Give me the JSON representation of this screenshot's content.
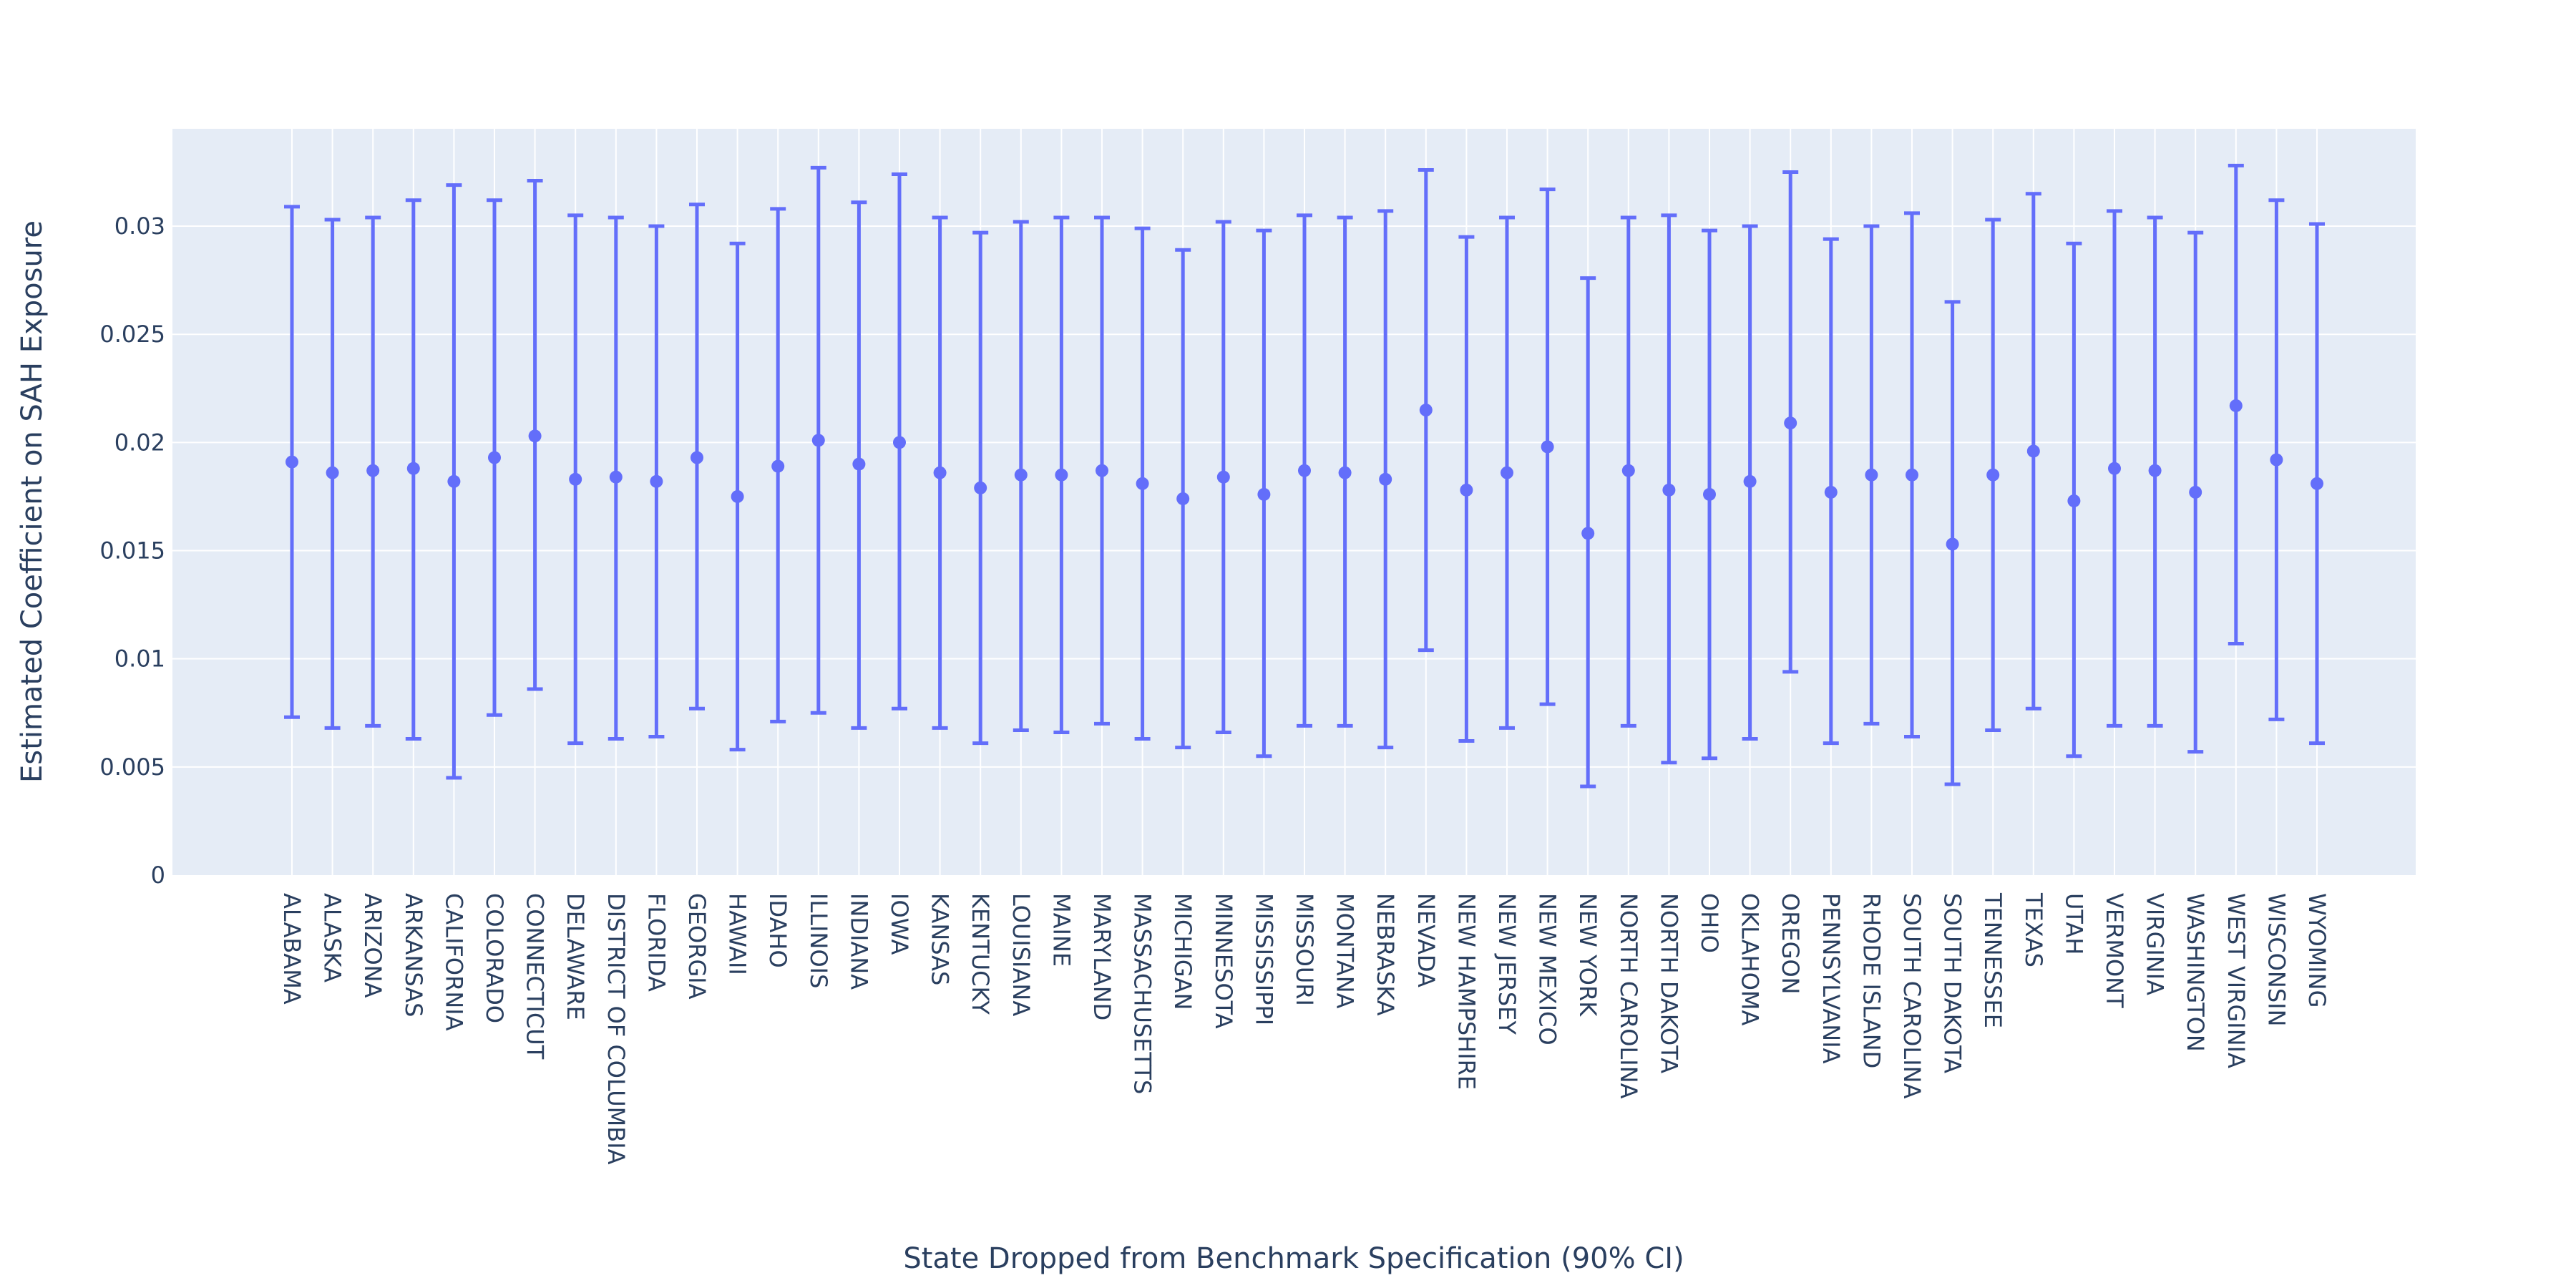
{
  "chart_data": {
    "type": "scatter",
    "error_bars": "asymmetric",
    "title": "",
    "xlabel": "State Dropped from Benchmark Specification (90% CI)",
    "ylabel": "Estimated Coefficient on SAH Exposure",
    "ylim": [
      0,
      0.0345
    ],
    "yticks": [
      {
        "value": 0,
        "label": "0"
      },
      {
        "value": 0.005,
        "label": "0.005"
      },
      {
        "value": 0.01,
        "label": "0.01"
      },
      {
        "value": 0.015,
        "label": "0.015"
      },
      {
        "value": 0.02,
        "label": "0.02"
      },
      {
        "value": 0.025,
        "label": "0.025"
      },
      {
        "value": 0.03,
        "label": "0.03"
      }
    ],
    "grid": true,
    "legend": "none",
    "colors": {
      "series": "#636efa",
      "plot_bg": "#e5ecf6",
      "grid": "#ffffff",
      "text": "#2a3f5f"
    },
    "categories": [
      "ALABAMA",
      "ALASKA",
      "ARIZONA",
      "ARKANSAS",
      "CALIFORNIA",
      "COLORADO",
      "CONNECTICUT",
      "DELAWARE",
      "DISTRICT OF COLUMBIA",
      "FLORIDA",
      "GEORGIA",
      "HAWAII",
      "IDAHO",
      "ILLINOIS",
      "INDIANA",
      "IOWA",
      "KANSAS",
      "KENTUCKY",
      "LOUISIANA",
      "MAINE",
      "MARYLAND",
      "MASSACHUSETTS",
      "MICHIGAN",
      "MINNESOTA",
      "MISSISSIPPI",
      "MISSOURI",
      "MONTANA",
      "NEBRASKA",
      "NEVADA",
      "NEW HAMPSHIRE",
      "NEW JERSEY",
      "NEW MEXICO",
      "NEW YORK",
      "NORTH CAROLINA",
      "NORTH DAKOTA",
      "OHIO",
      "OKLAHOMA",
      "OREGON",
      "PENNSYLVANIA",
      "RHODE ISLAND",
      "SOUTH CAROLINA",
      "SOUTH DAKOTA",
      "TENNESSEE",
      "TEXAS",
      "UTAH",
      "VERMONT",
      "VIRGINIA",
      "WASHINGTON",
      "WEST VIRGINIA",
      "WISCONSIN",
      "WYOMING"
    ],
    "estimate": [
      0.0191,
      0.0186,
      0.0187,
      0.0188,
      0.0182,
      0.0193,
      0.0203,
      0.0183,
      0.0184,
      0.0182,
      0.0193,
      0.0175,
      0.0189,
      0.0201,
      0.019,
      0.02,
      0.0186,
      0.0179,
      0.0185,
      0.0185,
      0.0187,
      0.0181,
      0.0174,
      0.0184,
      0.0176,
      0.0187,
      0.0186,
      0.0183,
      0.0215,
      0.0178,
      0.0186,
      0.0198,
      0.0158,
      0.0187,
      0.0178,
      0.0176,
      0.0182,
      0.0209,
      0.0177,
      0.0185,
      0.0185,
      0.0153,
      0.0185,
      0.0196,
      0.0173,
      0.0188,
      0.0187,
      0.0177,
      0.0217,
      0.0192,
      0.0181
    ],
    "ci_lower": [
      0.0073,
      0.0068,
      0.0069,
      0.0063,
      0.0045,
      0.0074,
      0.0086,
      0.0061,
      0.0063,
      0.0064,
      0.0077,
      0.0058,
      0.0071,
      0.0075,
      0.0068,
      0.0077,
      0.0068,
      0.0061,
      0.0067,
      0.0066,
      0.007,
      0.0063,
      0.0059,
      0.0066,
      0.0055,
      0.0069,
      0.0069,
      0.0059,
      0.0104,
      0.0062,
      0.0068,
      0.0079,
      0.0041,
      0.0069,
      0.0052,
      0.0054,
      0.0063,
      0.0094,
      0.0061,
      0.007,
      0.0064,
      0.0042,
      0.0067,
      0.0077,
      0.0055,
      0.0069,
      0.0069,
      0.0057,
      0.0107,
      0.0072,
      0.0061
    ],
    "ci_upper": [
      0.0309,
      0.0303,
      0.0304,
      0.0312,
      0.0319,
      0.0312,
      0.0321,
      0.0305,
      0.0304,
      0.03,
      0.031,
      0.0292,
      0.0308,
      0.0327,
      0.0311,
      0.0324,
      0.0304,
      0.0297,
      0.0302,
      0.0304,
      0.0304,
      0.0299,
      0.0289,
      0.0302,
      0.0298,
      0.0305,
      0.0304,
      0.0307,
      0.0326,
      0.0295,
      0.0304,
      0.0317,
      0.0276,
      0.0304,
      0.0305,
      0.0298,
      0.03,
      0.0325,
      0.0294,
      0.03,
      0.0306,
      0.0265,
      0.0303,
      0.0315,
      0.0292,
      0.0307,
      0.0304,
      0.0297,
      0.0328,
      0.0312,
      0.0301
    ]
  }
}
